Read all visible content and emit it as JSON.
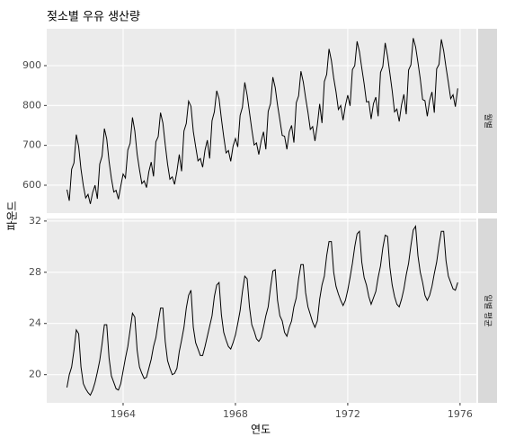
{
  "chart_data": {
    "type": "line",
    "title": "젖소별 우유 생산량",
    "xlabel": "연도",
    "ylabel": "파운드",
    "grid": true,
    "color": "#000000",
    "xlim": [
      1961.28,
      1976.58
    ],
    "xticks": [
      1964,
      1968,
      1972,
      1976
    ],
    "x": [
      1962,
      1962.083,
      1962.167,
      1962.25,
      1962.333,
      1962.417,
      1962.5,
      1962.583,
      1962.667,
      1962.75,
      1962.833,
      1962.917,
      1963,
      1963.083,
      1963.167,
      1963.25,
      1963.333,
      1963.417,
      1963.5,
      1963.583,
      1963.667,
      1963.75,
      1963.833,
      1963.917,
      1964,
      1964.083,
      1964.167,
      1964.25,
      1964.333,
      1964.417,
      1964.5,
      1964.583,
      1964.667,
      1964.75,
      1964.833,
      1964.917,
      1965,
      1965.083,
      1965.167,
      1965.25,
      1965.333,
      1965.417,
      1965.5,
      1965.583,
      1965.667,
      1965.75,
      1965.833,
      1965.917,
      1966,
      1966.083,
      1966.167,
      1966.25,
      1966.333,
      1966.417,
      1966.5,
      1966.583,
      1966.667,
      1966.75,
      1966.833,
      1966.917,
      1967,
      1967.083,
      1967.167,
      1967.25,
      1967.333,
      1967.417,
      1967.5,
      1967.583,
      1967.667,
      1967.75,
      1967.833,
      1967.917,
      1968,
      1968.083,
      1968.167,
      1968.25,
      1968.333,
      1968.417,
      1968.5,
      1968.583,
      1968.667,
      1968.75,
      1968.833,
      1968.917,
      1969,
      1969.083,
      1969.167,
      1969.25,
      1969.333,
      1969.417,
      1969.5,
      1969.583,
      1969.667,
      1969.75,
      1969.833,
      1969.917,
      1970,
      1970.083,
      1970.167,
      1970.25,
      1970.333,
      1970.417,
      1970.5,
      1970.583,
      1970.667,
      1970.75,
      1970.833,
      1970.917,
      1971,
      1971.083,
      1971.167,
      1971.25,
      1971.333,
      1971.417,
      1971.5,
      1971.583,
      1971.667,
      1971.75,
      1971.833,
      1971.917,
      1972,
      1972.083,
      1972.167,
      1972.25,
      1972.333,
      1972.417,
      1972.5,
      1972.583,
      1972.667,
      1972.75,
      1972.833,
      1972.917,
      1973,
      1973.083,
      1973.167,
      1973.25,
      1973.333,
      1973.417,
      1973.5,
      1973.583,
      1973.667,
      1973.75,
      1973.833,
      1973.917,
      1974,
      1974.083,
      1974.167,
      1974.25,
      1974.333,
      1974.417,
      1974.5,
      1974.583,
      1974.667,
      1974.75,
      1974.833,
      1974.917,
      1975,
      1975.083,
      1975.167,
      1975.25,
      1975.333,
      1975.417,
      1975.5,
      1975.583,
      1975.667,
      1975.75,
      1975.833,
      1975.917
    ],
    "series": [
      {
        "name": "월별",
        "ylim": [
          530,
          992.5
        ],
        "yticks": [
          600,
          700,
          800,
          900
        ],
        "values": [
          589,
          561,
          640,
          656,
          727,
          697,
          640,
          599,
          568,
          577,
          553,
          582,
          600,
          566,
          653,
          673,
          742,
          716,
          660,
          617,
          583,
          587,
          565,
          598,
          628,
          618,
          688,
          705,
          770,
          736,
          678,
          639,
          604,
          611,
          594,
          634,
          658,
          622,
          709,
          722,
          782,
          756,
          702,
          653,
          615,
          621,
          602,
          635,
          677,
          635,
          736,
          755,
          811,
          798,
          735,
          697,
          661,
          667,
          645,
          688,
          713,
          667,
          762,
          784,
          837,
          817,
          767,
          722,
          681,
          687,
          660,
          698,
          717,
          696,
          775,
          796,
          858,
          826,
          783,
          740,
          701,
          706,
          677,
          711,
          734,
          690,
          785,
          805,
          871,
          845,
          801,
          764,
          725,
          723,
          690,
          734,
          750,
          707,
          807,
          824,
          886,
          859,
          819,
          783,
          740,
          747,
          711,
          751,
          804,
          756,
          860,
          878,
          942,
          913,
          869,
          834,
          790,
          800,
          763,
          800,
          826,
          799,
          890,
          900,
          961,
          935,
          894,
          855,
          809,
          810,
          766,
          805,
          821,
          773,
          883,
          898,
          957,
          924,
          881,
          837,
          784,
          791,
          760,
          802,
          828,
          778,
          889,
          902,
          969,
          947,
          908,
          867,
          815,
          812,
          773,
          813,
          834,
          782,
          892,
          903,
          966,
          937,
          896,
          858,
          817,
          827,
          797,
          843
        ]
      },
      {
        "name": "일별 평균",
        "ylim": [
          17.8,
          32.2
        ],
        "yticks": [
          20,
          24,
          28,
          32
        ],
        "values": [
          19.0,
          20.0,
          20.6,
          21.9,
          23.5,
          23.2,
          20.6,
          19.3,
          18.9,
          18.6,
          18.4,
          18.8,
          19.4,
          20.2,
          21.1,
          22.4,
          23.9,
          23.9,
          21.3,
          19.9,
          19.4,
          18.9,
          18.8,
          19.3,
          20.3,
          21.3,
          22.2,
          23.5,
          24.8,
          24.5,
          21.9,
          20.6,
          20.1,
          19.7,
          19.8,
          20.5,
          21.2,
          22.2,
          22.9,
          24.1,
          25.2,
          25.2,
          22.6,
          21.1,
          20.5,
          20.0,
          20.1,
          20.5,
          21.8,
          22.7,
          23.7,
          25.2,
          26.2,
          26.6,
          23.7,
          22.5,
          22.0,
          21.5,
          21.5,
          22.2,
          23.0,
          23.8,
          24.6,
          26.1,
          27.0,
          27.2,
          24.7,
          23.3,
          22.7,
          22.2,
          22.0,
          22.5,
          23.1,
          24.0,
          25.0,
          26.5,
          27.7,
          27.5,
          25.3,
          23.9,
          23.4,
          22.8,
          22.6,
          22.9,
          23.7,
          24.6,
          25.3,
          26.8,
          28.1,
          28.2,
          25.8,
          24.6,
          24.2,
          23.3,
          23.0,
          23.7,
          24.2,
          25.3,
          26.0,
          27.5,
          28.6,
          28.6,
          26.4,
          25.3,
          24.7,
          24.1,
          23.7,
          24.2,
          25.9,
          27.0,
          27.7,
          29.3,
          30.4,
          30.4,
          28.0,
          26.9,
          26.3,
          25.8,
          25.4,
          25.8,
          26.6,
          27.6,
          28.7,
          30.0,
          31.0,
          31.2,
          28.8,
          27.6,
          27.0,
          26.1,
          25.5,
          26.0,
          26.5,
          27.6,
          28.5,
          29.9,
          30.9,
          30.8,
          28.4,
          27.0,
          26.1,
          25.5,
          25.3,
          25.9,
          26.7,
          27.8,
          28.7,
          30.1,
          31.3,
          31.6,
          29.3,
          28.0,
          27.2,
          26.2,
          25.8,
          26.2,
          26.9,
          27.9,
          28.8,
          30.1,
          31.2,
          31.2,
          28.9,
          27.7,
          27.2,
          26.7,
          26.6,
          27.2
        ]
      }
    ]
  }
}
